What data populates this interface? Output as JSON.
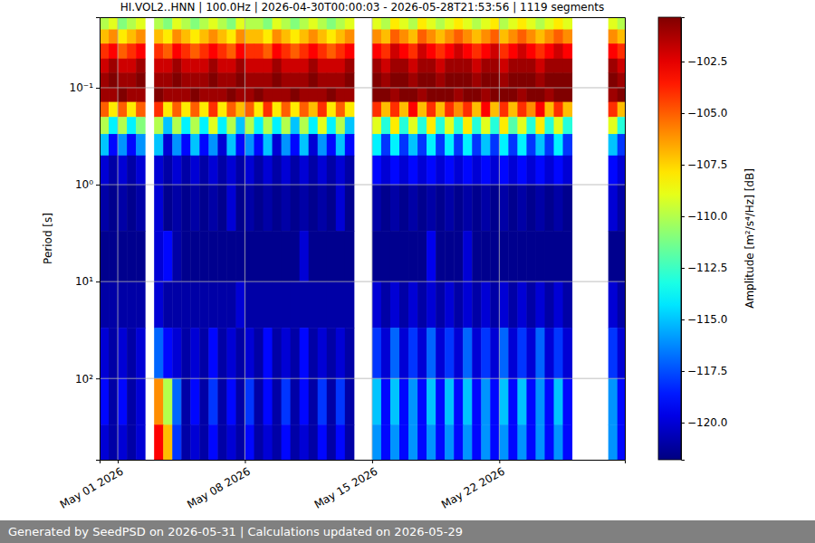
{
  "chart_data": {
    "type": "heatmap",
    "title": "HI.VOL2..HNN | 100.0Hz | 2026-04-30T00:00:03 - 2026-05-28T21:53:56 | 1119 segments",
    "y_label": "Period [s]",
    "xlim": [
      "2026-04-30T00:00:03",
      "2026-05-28T21:53:56"
    ],
    "xticks": [
      {
        "value": "2026-05-01",
        "label": "May 01 2026"
      },
      {
        "value": "2026-05-08",
        "label": "May 08 2026"
      },
      {
        "value": "2026-05-15",
        "label": "May 15 2026"
      },
      {
        "value": "2026-05-22",
        "label": "May 22 2026"
      }
    ],
    "ylim": [
      0.0187,
      690
    ],
    "yticks": [
      {
        "value": 0.1,
        "label": "10⁻¹"
      },
      {
        "value": 1,
        "label": "10⁰"
      },
      {
        "value": 10,
        "label": "10¹"
      },
      {
        "value": 100,
        "label": "10²"
      }
    ],
    "log": "y",
    "grid": true,
    "x": [
      "2026-04-30T00:00",
      "2026-04-30T12:00",
      "2026-05-01T00:00",
      "2026-05-01T12:00",
      "2026-05-02T00:00",
      "2026-05-02T12:00",
      "2026-05-03T00:00",
      "2026-05-03T12:00",
      "2026-05-04T00:00",
      "2026-05-04T12:00",
      "2026-05-05T00:00",
      "2026-05-05T12:00",
      "2026-05-06T00:00",
      "2026-05-06T12:00",
      "2026-05-07T00:00",
      "2026-05-07T12:00",
      "2026-05-08T00:00",
      "2026-05-08T12:00",
      "2026-05-09T00:00",
      "2026-05-09T12:00",
      "2026-05-10T00:00",
      "2026-05-10T12:00",
      "2026-05-11T00:00",
      "2026-05-11T12:00",
      "2026-05-12T00:00",
      "2026-05-12T12:00",
      "2026-05-13T00:00",
      "2026-05-13T12:00",
      "2026-05-14T00:00",
      "2026-05-14T12:00",
      "2026-05-15T00:00",
      "2026-05-15T12:00",
      "2026-05-16T00:00",
      "2026-05-16T12:00",
      "2026-05-17T00:00",
      "2026-05-17T12:00",
      "2026-05-18T00:00",
      "2026-05-18T12:00",
      "2026-05-19T00:00",
      "2026-05-19T12:00",
      "2026-05-20T00:00",
      "2026-05-20T12:00",
      "2026-05-21T00:00",
      "2026-05-21T12:00",
      "2026-05-22T00:00",
      "2026-05-22T12:00",
      "2026-05-23T00:00",
      "2026-05-23T12:00",
      "2026-05-24T00:00",
      "2026-05-24T12:00",
      "2026-05-25T00:00",
      "2026-05-25T12:00",
      "2026-05-26T00:00",
      "2026-05-26T12:00",
      "2026-05-27T00:00",
      "2026-05-27T12:00",
      "2026-05-28T00:00",
      "2026-05-28T12:00"
    ],
    "y": [
      0.0187,
      0.025,
      0.035,
      0.05,
      0.07,
      0.1,
      0.14,
      0.2,
      0.3,
      0.5,
      1,
      3,
      10,
      30,
      100,
      300,
      690
    ],
    "values": [
      [
        -110,
        -109,
        -111,
        -110,
        -109,
        null,
        -110,
        -111,
        -109,
        -110,
        -111,
        -110,
        -109,
        -110,
        -111,
        -109,
        -110,
        -110,
        -111,
        -109,
        -110,
        -111,
        -110,
        -109,
        -110,
        -111,
        -110,
        -109,
        null,
        null,
        -109,
        -110,
        -108,
        -109,
        -110,
        -108,
        -109,
        -110,
        -109,
        -108,
        -109,
        -110,
        -109,
        -108,
        -110,
        -109,
        -108,
        -109,
        -110,
        -109,
        -108,
        -109,
        null,
        null,
        null,
        null,
        -109,
        -110
      ],
      [
        -107,
        -106,
        -108,
        -107,
        -106,
        null,
        -107,
        -108,
        -106,
        -107,
        -108,
        -107,
        -106,
        -107,
        -108,
        -106,
        -107,
        -107,
        -108,
        -106,
        -107,
        -108,
        -107,
        -106,
        -107,
        -108,
        -107,
        -106,
        null,
        null,
        -106,
        -107,
        -105,
        -106,
        -107,
        -105,
        -106,
        -107,
        -106,
        -105,
        -106,
        -107,
        -106,
        -105,
        -107,
        -106,
        -105,
        -106,
        -107,
        -106,
        -105,
        -106,
        null,
        null,
        null,
        null,
        -106,
        -107
      ],
      [
        -104,
        -103,
        -105,
        -104,
        -103,
        null,
        -104,
        -105,
        -103,
        -104,
        -105,
        -104,
        -103,
        -104,
        -105,
        -103,
        -104,
        -104,
        -105,
        -103,
        -104,
        -105,
        -104,
        -103,
        -104,
        -105,
        -104,
        -103,
        null,
        null,
        -103,
        -104,
        -102,
        -103,
        -104,
        -102,
        -103,
        -104,
        -103,
        -102,
        -103,
        -104,
        -103,
        -102,
        -104,
        -103,
        -102,
        -103,
        -104,
        -103,
        -102,
        -103,
        null,
        null,
        null,
        null,
        -103,
        -104
      ],
      [
        -102,
        -101,
        -102,
        -102,
        -101,
        null,
        -102,
        -102,
        -101,
        -102,
        -102,
        -102,
        -101,
        -102,
        -102,
        -101,
        -102,
        -102,
        -102,
        -101,
        -102,
        -102,
        -102,
        -101,
        -102,
        -102,
        -102,
        -101,
        null,
        null,
        -101,
        -102,
        -101,
        -101,
        -102,
        -101,
        -101,
        -102,
        -101,
        -101,
        -101,
        -102,
        -101,
        -101,
        -102,
        -101,
        -101,
        -101,
        -102,
        -101,
        -101,
        -101,
        null,
        null,
        null,
        null,
        -101,
        -102
      ],
      [
        -101,
        -100,
        -101,
        -101,
        -100,
        null,
        -101,
        -101,
        -100,
        -101,
        -101,
        -101,
        -100,
        -101,
        -101,
        -100,
        -101,
        -101,
        -101,
        -100,
        -101,
        -101,
        -101,
        -100,
        -101,
        -101,
        -101,
        -100,
        null,
        null,
        -100,
        -101,
        -100,
        -100,
        -101,
        -100,
        -100,
        -101,
        -100,
        -100,
        -100,
        -101,
        -100,
        -100,
        -101,
        -100,
        -100,
        -100,
        -101,
        -100,
        -100,
        -100,
        null,
        null,
        null,
        null,
        -100,
        -101
      ],
      [
        -101,
        -101,
        -100,
        -101,
        -101,
        null,
        -100,
        -101,
        -101,
        -101,
        -100,
        -101,
        -101,
        -101,
        -100,
        -101,
        -101,
        -100,
        -101,
        -101,
        -101,
        -100,
        -101,
        -101,
        -101,
        -100,
        -101,
        -101,
        null,
        null,
        -100,
        -100,
        -101,
        -100,
        -100,
        -101,
        -100,
        -100,
        -100,
        -101,
        -100,
        -100,
        -101,
        -100,
        -100,
        -100,
        -101,
        -100,
        -100,
        -101,
        -100,
        -100,
        null,
        null,
        null,
        null,
        -101,
        -100
      ],
      [
        -105,
        -108,
        -105,
        -108,
        -105,
        null,
        -104,
        -108,
        -105,
        -108,
        -105,
        -108,
        -104,
        -108,
        -105,
        -107,
        -105,
        -108,
        -104,
        -108,
        -105,
        -108,
        -105,
        -107,
        -104,
        -108,
        -105,
        -108,
        null,
        null,
        -104,
        -107,
        -104,
        -107,
        -103,
        -107,
        -104,
        -107,
        -104,
        -106,
        -104,
        -107,
        -103,
        -107,
        -104,
        -107,
        -104,
        -106,
        -103,
        -107,
        -104,
        -107,
        null,
        null,
        null,
        null,
        -104,
        -107
      ],
      [
        -110,
        -114,
        -110,
        -114,
        -111,
        null,
        -110,
        -115,
        -110,
        -114,
        -110,
        -114,
        -109,
        -114,
        -110,
        -115,
        -110,
        -114,
        -110,
        -114,
        -110,
        -115,
        -110,
        -114,
        -109,
        -114,
        -110,
        -115,
        null,
        null,
        -109,
        -113,
        -108,
        -113,
        -109,
        -113,
        -108,
        -113,
        -109,
        -113,
        -108,
        -113,
        -109,
        -113,
        -108,
        -112,
        -109,
        -113,
        -108,
        -113,
        -109,
        -113,
        null,
        null,
        null,
        null,
        -109,
        -113
      ],
      [
        -115,
        -119,
        -116,
        -119,
        -116,
        null,
        -115,
        -120,
        -116,
        -119,
        -115,
        -119,
        -116,
        -120,
        -115,
        -119,
        -116,
        -119,
        -115,
        -120,
        -116,
        -119,
        -115,
        -120,
        -116,
        -119,
        -115,
        -119,
        null,
        null,
        -114,
        -118,
        -114,
        -118,
        -115,
        -118,
        -114,
        -118,
        -114,
        -118,
        -114,
        -118,
        -115,
        -118,
        -114,
        -118,
        -114,
        -118,
        -115,
        -118,
        -114,
        -118,
        null,
        null,
        null,
        null,
        -115,
        -118
      ],
      [
        -120,
        -121,
        -120,
        -121,
        -120,
        null,
        -120,
        -121,
        -120,
        -121,
        -120,
        -121,
        -120,
        -121,
        -120,
        -121,
        -120,
        -121,
        -120,
        -121,
        -120,
        -121,
        -120,
        -121,
        -120,
        -121,
        -120,
        -121,
        null,
        null,
        -119,
        -120,
        -119,
        -120,
        -119,
        -120,
        -119,
        -120,
        -119,
        -120,
        -119,
        -120,
        -119,
        -120,
        -119,
        -120,
        -119,
        -120,
        -119,
        -120,
        -119,
        -120,
        null,
        null,
        null,
        null,
        -119,
        -120
      ],
      [
        -121,
        -121.5,
        -121,
        -121.5,
        -121,
        null,
        -120,
        -121.5,
        -121,
        -121.5,
        -121,
        -121.5,
        -121,
        -121.5,
        -120,
        -121.5,
        -121,
        -121.5,
        -121,
        -121.5,
        -121,
        -121.5,
        -121,
        -121.5,
        -121,
        -121.5,
        -120,
        -121.5,
        null,
        null,
        -121,
        -121.5,
        -121,
        -121.5,
        -121,
        -121.5,
        -121,
        -121.5,
        -121,
        -121.5,
        -121,
        -121.5,
        -121,
        -121.5,
        -121,
        -121.5,
        -121,
        -121.5,
        -121,
        -121.5,
        -121,
        -121.5,
        null,
        null,
        null,
        null,
        -120,
        -121
      ],
      [
        -121.5,
        -121.5,
        -121.5,
        -121.5,
        -121.5,
        null,
        -120,
        -119,
        -121,
        -121.5,
        -121.5,
        -121.5,
        -121.5,
        -121.5,
        -121.5,
        -121.5,
        -121.5,
        -121.5,
        -121.5,
        -121.5,
        -121.5,
        -121.5,
        -120,
        -121.5,
        -121.5,
        -121.5,
        -121.5,
        -121.5,
        null,
        null,
        -121.5,
        -121.5,
        -121.5,
        -121.5,
        -121.5,
        -121.5,
        -119.5,
        -121.5,
        -121.5,
        -121.5,
        -120,
        -121.5,
        -121.5,
        -121.5,
        -121.5,
        -121.5,
        -121.5,
        -121.5,
        -121.5,
        -121.5,
        -121.5,
        -121.5,
        null,
        null,
        null,
        null,
        -121.5,
        -121.5
      ],
      [
        -121,
        -121,
        -121,
        -121,
        -121,
        null,
        -120,
        -121,
        -121,
        -121,
        -121,
        -121,
        -121,
        -121,
        -121,
        -120,
        -121,
        -121,
        -121,
        -121,
        -121,
        -121,
        -121,
        -121,
        -121,
        -121,
        -121,
        -121,
        null,
        null,
        -120,
        -121,
        -120,
        -121,
        -120,
        -121,
        -120,
        -121,
        -120,
        -121,
        -120,
        -121,
        -120,
        -121,
        -120,
        -121,
        -120,
        -121,
        -120,
        -121,
        -120,
        -121,
        null,
        null,
        null,
        null,
        -120,
        -121
      ],
      [
        -120,
        -121,
        -120,
        -121,
        -120,
        null,
        -117,
        -119,
        -120,
        -121,
        -120,
        -121,
        -119,
        -121,
        -120,
        -121,
        -120,
        -121,
        -119,
        -121,
        -120,
        -121,
        -119,
        -121,
        -120,
        -121,
        -120,
        -121,
        null,
        null,
        -118,
        -120,
        -117,
        -120,
        -118,
        -120,
        -117,
        -120,
        -118,
        -120,
        -117,
        -120,
        -118,
        -120,
        -117,
        -120,
        -118,
        -120,
        -117,
        -120,
        -118,
        -120,
        null,
        null,
        null,
        null,
        -118,
        -120
      ],
      [
        -119,
        -121,
        -119,
        -121,
        -120,
        null,
        -106,
        -110,
        -117,
        -121,
        -119,
        -121,
        -118,
        -121,
        -119,
        -121,
        -118,
        -121,
        -119,
        -121,
        -118,
        -121,
        -119,
        -121,
        -118,
        -121,
        -118,
        -121,
        null,
        null,
        -115,
        -119,
        -115,
        -119,
        -116,
        -119,
        -115,
        -119,
        -115,
        -119,
        -115,
        -119,
        -116,
        -119,
        -115,
        -119,
        -115,
        -119,
        -116,
        -119,
        -115,
        -119,
        null,
        null,
        null,
        null,
        -116,
        -119
      ],
      [
        -120,
        -121,
        -120,
        -121,
        -120,
        null,
        -103,
        -107,
        -118,
        -121,
        -120,
        -121,
        -119,
        -121,
        -120,
        -121,
        -119,
        -121,
        -120,
        -121,
        -119,
        -121,
        -120,
        -121,
        -119,
        -121,
        -119,
        -121,
        null,
        null,
        -116,
        -119,
        -116,
        -119,
        -116,
        -119,
        -116,
        -119,
        -116,
        -119,
        -116,
        -119,
        -116,
        -119,
        -116,
        -119,
        -116,
        -119,
        -116,
        -119,
        -116,
        -119,
        null,
        null,
        null,
        null,
        -116,
        -119
      ]
    ],
    "colorbar": {
      "label": "Amplitude [m²/s⁴/Hz] [dB]",
      "lim": [
        -121.8,
        -100.35
      ],
      "ticks": [
        {
          "value": -102.5,
          "label": "−102.5"
        },
        {
          "value": -105,
          "label": "−105.0"
        },
        {
          "value": -107.5,
          "label": "−107.5"
        },
        {
          "value": -110,
          "label": "−110.0"
        },
        {
          "value": -112.5,
          "label": "−112.5"
        },
        {
          "value": -115,
          "label": "−115.0"
        },
        {
          "value": -117.5,
          "label": "−117.5"
        },
        {
          "value": -120,
          "label": "−120.0"
        }
      ]
    }
  },
  "footer": "Generated by SeedPSD on 2026-05-31 | Calculations updated on 2026-05-29"
}
